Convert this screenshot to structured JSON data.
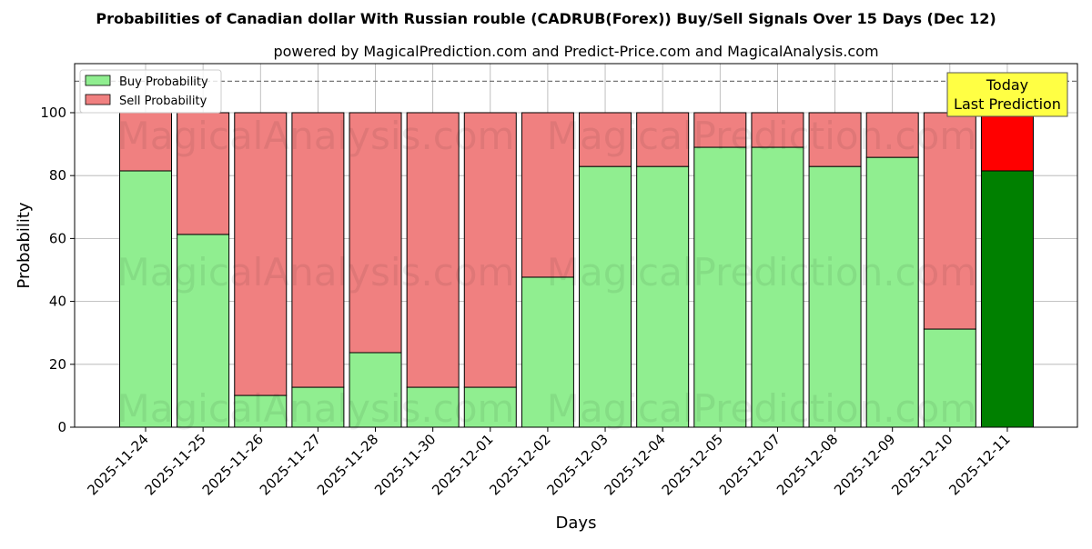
{
  "chart_data": {
    "type": "bar",
    "stacked": true,
    "title": "Probabilities of Canadian dollar With Russian rouble (CADRUB(Forex)) Buy/Sell Signals Over 15 Days (Dec 12)",
    "subtitle": "powered by MagicalPrediction.com and Predict-Price.com and MagicalAnalysis.com",
    "xlabel": "Days",
    "ylabel": "Probability",
    "ylim": [
      0,
      115.6
    ],
    "yticks": [
      0,
      20,
      40,
      60,
      80,
      100
    ],
    "grid": true,
    "legend_position": "top-left",
    "reference_line": 110,
    "categories": [
      "2025-11-24",
      "2025-11-25",
      "2025-11-26",
      "2025-11-27",
      "2025-11-28",
      "2025-11-30",
      "2025-12-01",
      "2025-12-02",
      "2025-12-03",
      "2025-12-04",
      "2025-12-05",
      "2025-12-07",
      "2025-12-08",
      "2025-12-09",
      "2025-12-10",
      "2025-12-11"
    ],
    "series": [
      {
        "name": "Buy Probability",
        "color": "#90ee90",
        "values": [
          81.5,
          61.3,
          10.1,
          12.7,
          23.7,
          12.7,
          12.7,
          47.7,
          82.9,
          82.9,
          89.0,
          89.0,
          82.9,
          85.8,
          31.2,
          81.5
        ]
      },
      {
        "name": "Sell Probability",
        "color": "#f08080",
        "values": [
          18.5,
          38.7,
          89.9,
          87.3,
          76.3,
          87.3,
          87.3,
          52.3,
          17.1,
          17.1,
          11.0,
          11.0,
          17.1,
          14.2,
          68.8,
          18.5
        ]
      }
    ],
    "highlight": {
      "index": 15,
      "buy_color": "#008000",
      "sell_color": "#ff0000"
    },
    "annotation": {
      "line1": "Today",
      "line2": "Last Prediction",
      "color": "#ffff44"
    },
    "watermarks": [
      "MagicalAnalysis.com",
      "MagicalPrediction.com"
    ]
  }
}
